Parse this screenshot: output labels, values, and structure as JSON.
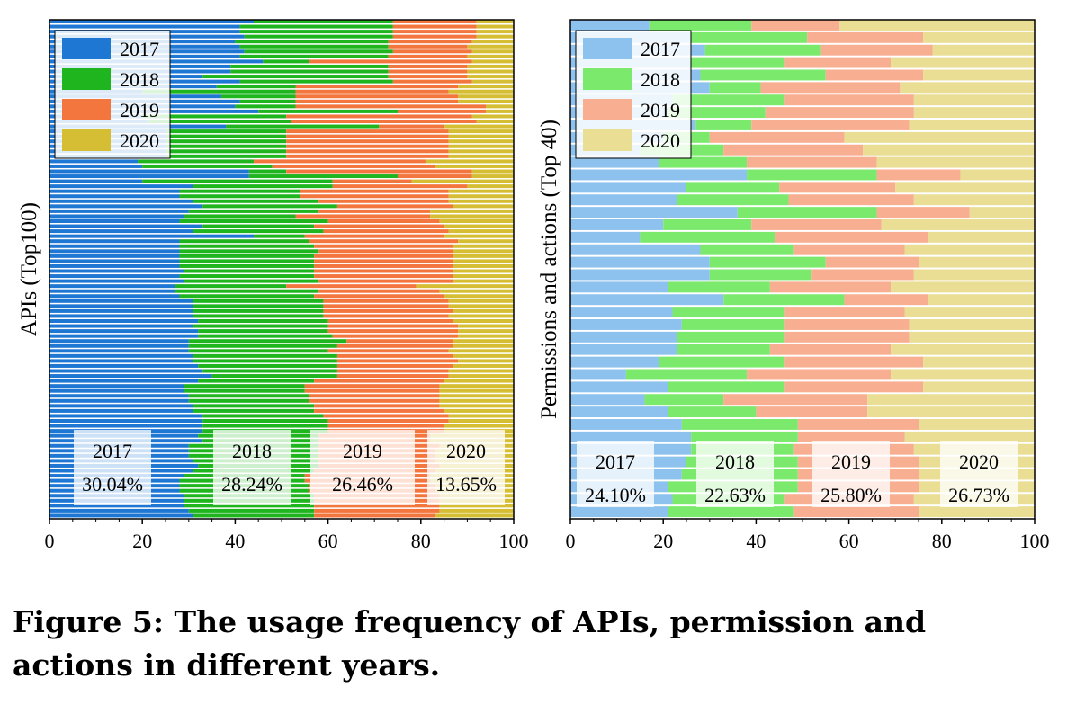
{
  "figure": {
    "caption": "Figure 5: The usage frequency of APIs, permission and actions in different years."
  },
  "chart_data": [
    {
      "type": "bar",
      "orientation": "horizontal",
      "stacked": true,
      "ylabel": "APIs (Top100)",
      "xlim": [
        0,
        100
      ],
      "xticks": [
        "0",
        "20",
        "40",
        "60",
        "80",
        "100"
      ],
      "legend": {
        "placement": "top-left",
        "entries": [
          "2017",
          "2018",
          "2019",
          "2020"
        ]
      },
      "colors": [
        "#1f77d4",
        "#1fb51f",
        "#f4763f",
        "#d5be33"
      ],
      "categories_count": 100,
      "series": [
        {
          "name": "2017",
          "values": [
            44,
            41,
            41,
            42,
            40,
            41,
            42,
            41,
            46,
            39,
            39,
            33,
            41,
            36,
            20,
            37,
            41,
            40,
            45,
            20,
            21,
            38,
            25,
            25,
            25,
            25,
            25,
            25,
            19,
            20,
            43,
            43,
            20,
            31,
            28,
            28,
            31,
            33,
            30,
            29,
            28,
            33,
            31,
            44,
            28,
            28,
            28,
            28,
            28,
            28,
            29,
            28,
            29,
            27,
            27,
            28,
            31,
            31,
            31,
            31,
            32,
            31,
            32,
            32,
            30,
            30,
            30,
            31,
            31,
            32,
            33,
            35,
            32,
            29,
            29,
            30,
            30,
            31,
            31,
            33,
            33,
            33,
            33,
            32,
            33,
            30,
            30,
            30,
            31,
            32,
            31,
            29,
            28,
            28,
            28,
            29,
            29,
            29,
            30,
            31
          ]
        },
        {
          "name": "2018",
          "values": [
            30,
            33,
            33,
            32,
            33,
            32,
            32,
            32,
            10,
            34,
            34,
            40,
            33,
            17,
            33,
            16,
            12,
            13,
            30,
            31,
            31,
            33,
            26,
            26,
            26,
            26,
            26,
            26,
            25,
            28,
            8,
            32,
            41,
            30,
            26,
            26,
            27,
            29,
            28,
            24,
            32,
            24,
            28,
            11,
            28,
            29,
            30,
            29,
            29,
            29,
            28,
            29,
            29,
            24,
            31,
            29,
            28,
            28,
            28,
            28,
            28,
            29,
            28,
            29,
            34,
            32,
            30,
            31,
            31,
            30,
            29,
            27,
            25,
            26,
            26,
            26,
            26,
            26,
            26,
            26,
            27,
            27,
            27,
            26,
            25,
            28,
            28,
            28,
            27,
            26,
            26,
            26,
            27,
            28,
            28,
            28,
            28,
            28,
            27,
            26
          ]
        },
        {
          "name": "2019",
          "values": [
            18,
            18,
            18,
            18,
            18,
            17,
            17,
            17,
            35,
            17,
            17,
            17,
            17,
            35,
            33,
            35,
            35,
            41,
            19,
            40,
            40,
            14,
            35,
            35,
            35,
            35,
            35,
            35,
            37,
            35,
            40,
            16,
            17,
            29,
            32,
            32,
            28,
            25,
            24,
            29,
            24,
            28,
            27,
            30,
            32,
            30,
            29,
            30,
            30,
            30,
            30,
            30,
            29,
            28,
            26,
            28,
            27,
            27,
            28,
            27,
            27,
            28,
            28,
            27,
            23,
            25,
            26,
            25,
            26,
            25,
            24,
            24,
            28,
            29,
            29,
            28,
            28,
            27,
            28,
            27,
            26,
            25,
            25,
            24,
            24,
            26,
            25,
            25,
            25,
            26,
            26,
            27,
            27,
            27,
            27,
            27,
            27,
            27,
            27,
            26
          ]
        },
        {
          "name": "2020",
          "values": [
            8,
            8,
            8,
            8,
            9,
            10,
            9,
            10,
            9,
            10,
            10,
            10,
            9,
            12,
            14,
            12,
            12,
            6,
            6,
            9,
            8,
            15,
            14,
            14,
            14,
            14,
            14,
            14,
            19,
            17,
            9,
            9,
            22,
            10,
            14,
            14,
            14,
            13,
            18,
            18,
            16,
            15,
            14,
            15,
            12,
            13,
            13,
            13,
            13,
            13,
            13,
            13,
            13,
            21,
            16,
            15,
            14,
            14,
            13,
            14,
            13,
            12,
            12,
            12,
            13,
            13,
            14,
            13,
            12,
            13,
            14,
            14,
            15,
            16,
            16,
            16,
            16,
            16,
            15,
            14,
            14,
            15,
            15,
            18,
            18,
            16,
            17,
            17,
            17,
            16,
            17,
            18,
            18,
            17,
            17,
            16,
            16,
            16,
            16,
            17
          ]
        }
      ],
      "annotations": [
        {
          "year": "2017",
          "percent": "30.04%"
        },
        {
          "year": "2018",
          "percent": "28.24%"
        },
        {
          "year": "2019",
          "percent": "26.46%"
        },
        {
          "year": "2020",
          "percent": "13.65%"
        }
      ]
    },
    {
      "type": "bar",
      "orientation": "horizontal",
      "stacked": true,
      "ylabel": "Permissions and actions (Top 40)",
      "xlim": [
        0,
        100
      ],
      "xticks": [
        "0",
        "20",
        "40",
        "60",
        "80",
        "100"
      ],
      "legend": {
        "placement": "top-left",
        "entries": [
          "2017",
          "2018",
          "2019",
          "2020"
        ]
      },
      "colors": [
        "#8ec2ee",
        "#7bea6c",
        "#f8ae90",
        "#e9de93"
      ],
      "categories_count": 40,
      "series": [
        {
          "name": "2017",
          "values": [
            17,
            26,
            29,
            26,
            28,
            30,
            22,
            21,
            27,
            20,
            15,
            19,
            38,
            25,
            23,
            36,
            20,
            15,
            28,
            30,
            30,
            21,
            33,
            22,
            24,
            23,
            23,
            19,
            12,
            21,
            16,
            21,
            24,
            26,
            26,
            25,
            24,
            21,
            22,
            21
          ]
        },
        {
          "name": "2018",
          "values": [
            22,
            25,
            25,
            20,
            27,
            11,
            24,
            21,
            12,
            10,
            18,
            19,
            28,
            20,
            24,
            30,
            19,
            29,
            20,
            25,
            22,
            22,
            26,
            24,
            22,
            23,
            20,
            27,
            26,
            25,
            17,
            19,
            25,
            23,
            22,
            24,
            25,
            28,
            24,
            27
          ]
        },
        {
          "name": "2019",
          "values": [
            19,
            25,
            24,
            23,
            21,
            30,
            28,
            32,
            34,
            29,
            30,
            28,
            18,
            25,
            27,
            20,
            28,
            33,
            24,
            20,
            22,
            26,
            18,
            26,
            27,
            27,
            26,
            30,
            31,
            30,
            31,
            24,
            26,
            23,
            26,
            26,
            26,
            26,
            28,
            27
          ]
        },
        {
          "name": "2020",
          "values": [
            42,
            24,
            22,
            31,
            24,
            29,
            26,
            26,
            27,
            41,
            37,
            34,
            16,
            30,
            26,
            14,
            33,
            23,
            28,
            25,
            26,
            31,
            23,
            28,
            27,
            27,
            31,
            24,
            31,
            24,
            36,
            36,
            25,
            28,
            26,
            25,
            25,
            25,
            26,
            25
          ]
        }
      ],
      "annotations": [
        {
          "year": "2017",
          "percent": "24.10%"
        },
        {
          "year": "2018",
          "percent": "22.63%"
        },
        {
          "year": "2019",
          "percent": "25.80%"
        },
        {
          "year": "2020",
          "percent": "26.73%"
        }
      ]
    }
  ]
}
